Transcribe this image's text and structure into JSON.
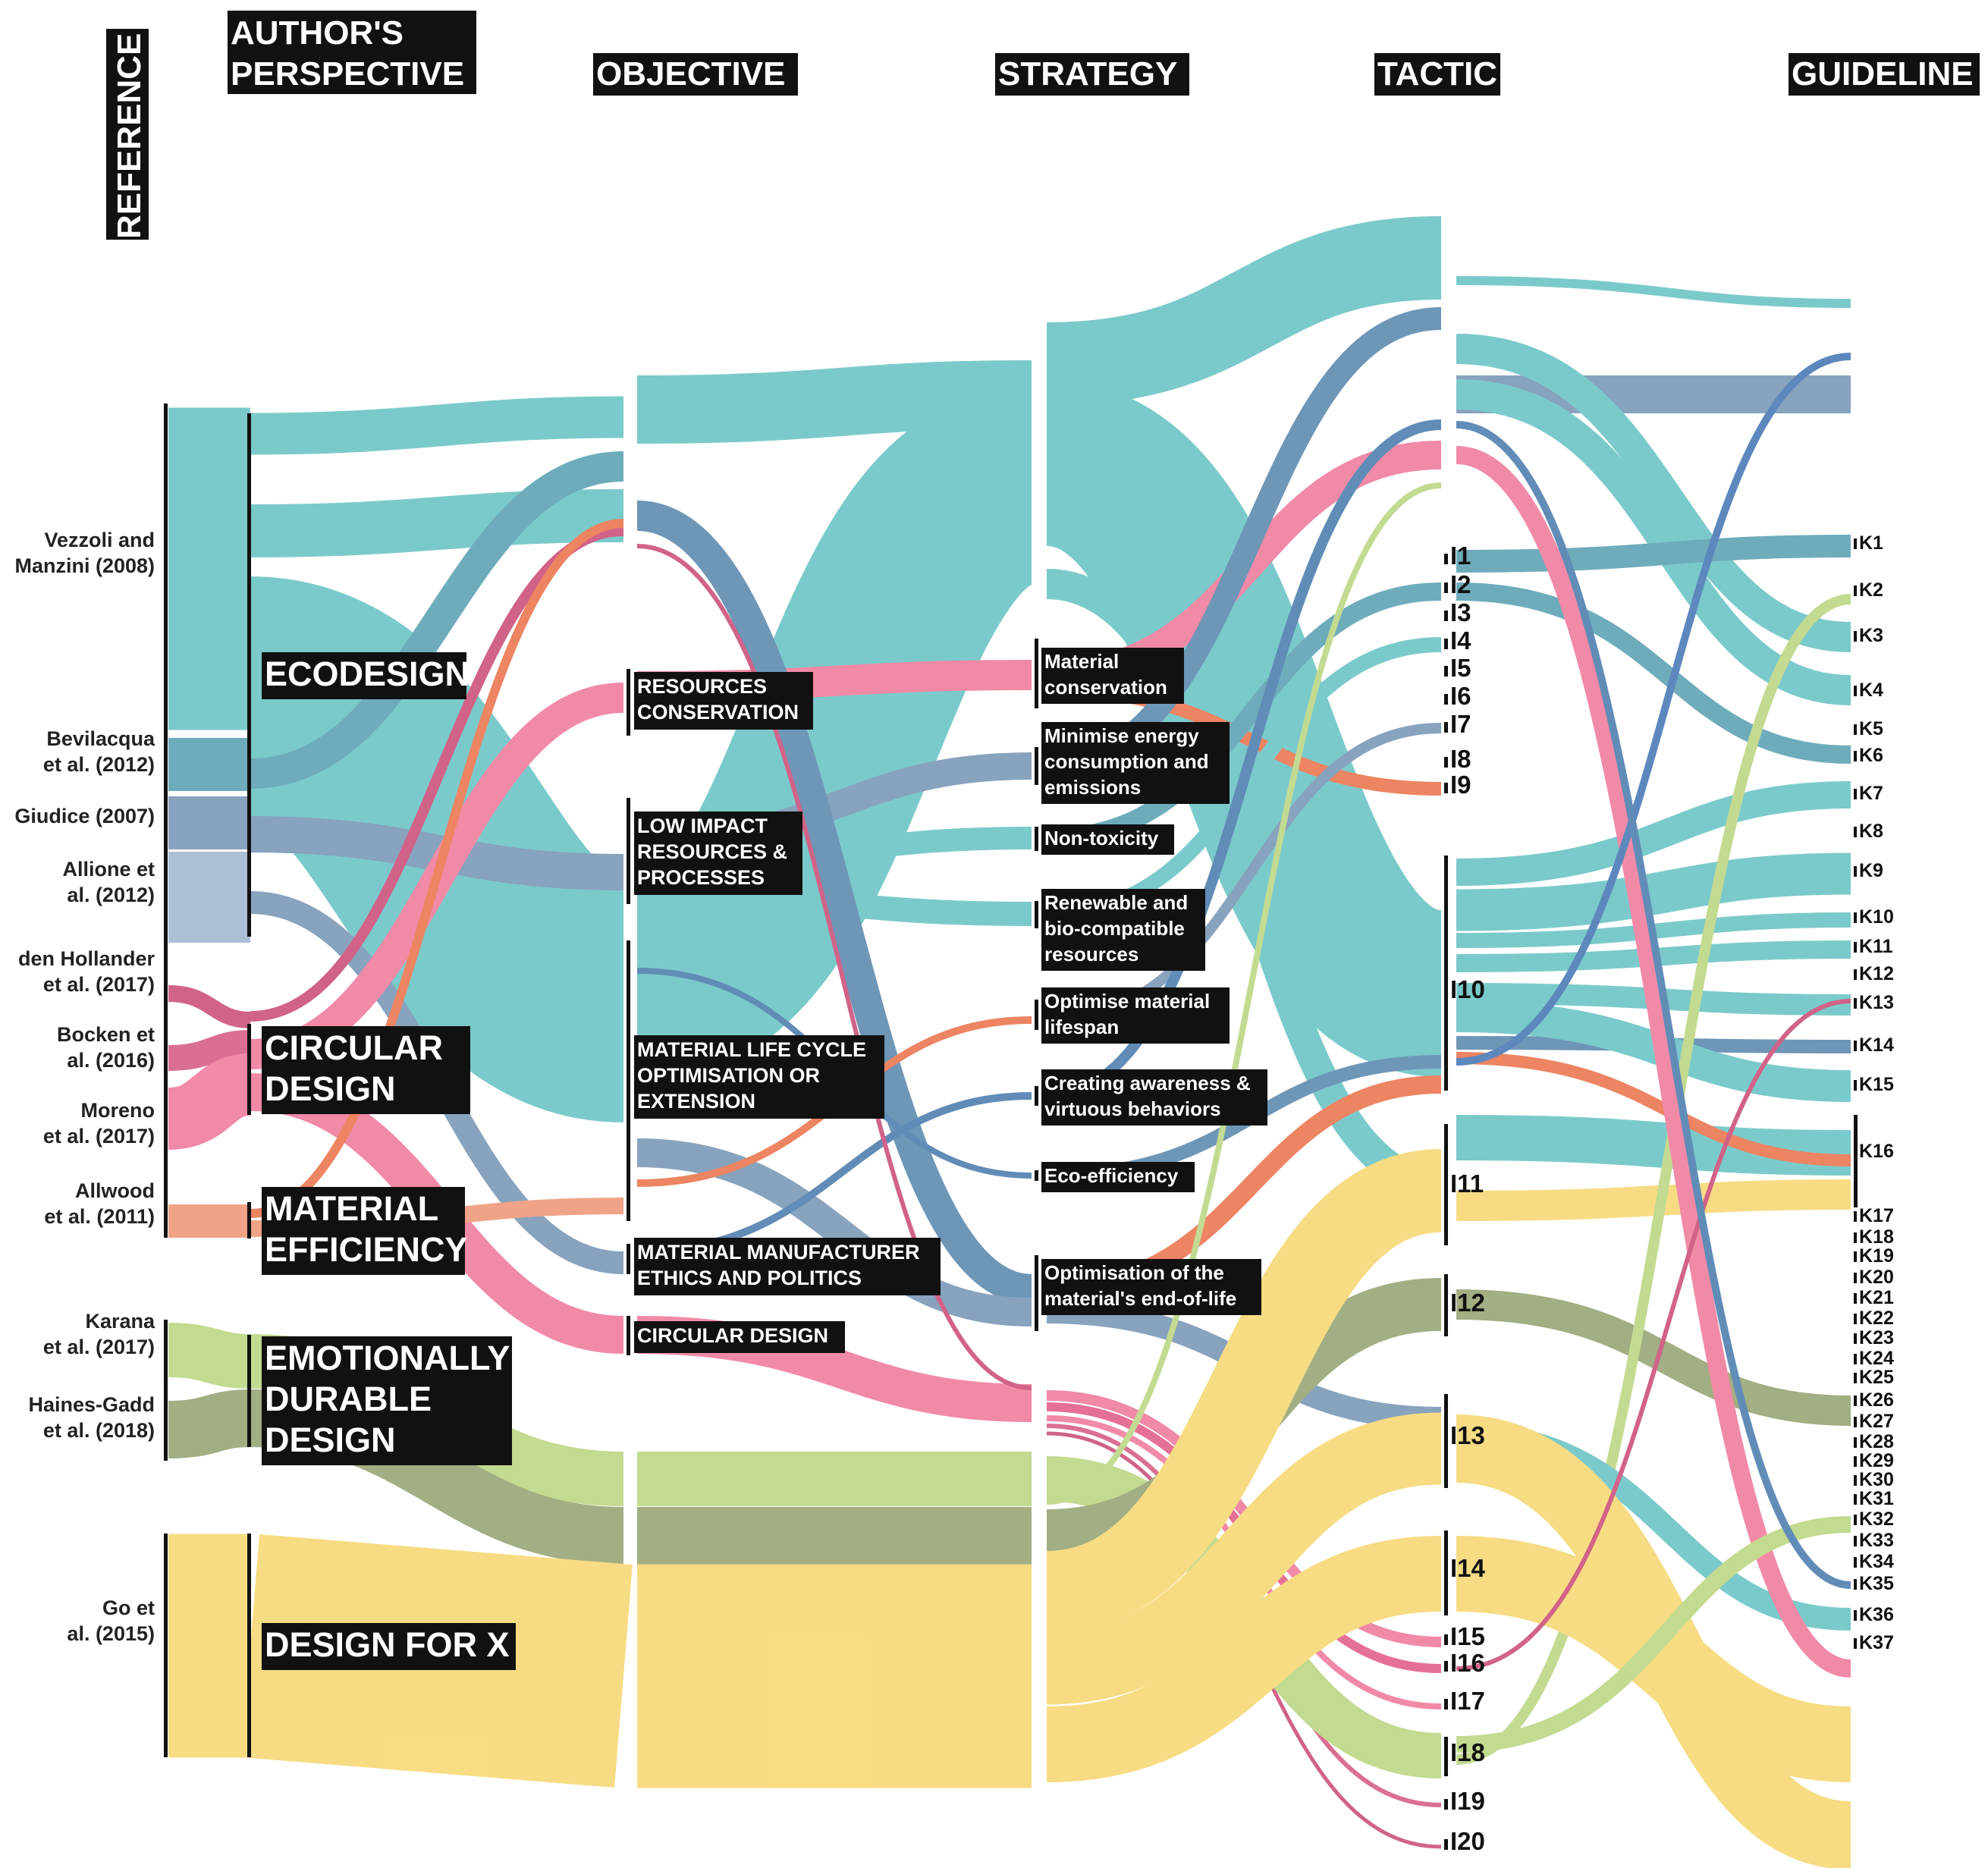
{
  "headers": {
    "reference": "REFERENCE",
    "perspective_line1": "AUTHOR'S",
    "perspective_line2": "PERSPECTIVE",
    "objective": "OBJECTIVE",
    "strategy": "STRATEGY",
    "tactic": "TACTIC",
    "guideline": "GUIDELINE"
  },
  "palette": {
    "teal": "#5fbfc0",
    "slate_teal": "#4f9aae",
    "slate": "#6f8fb0",
    "light_slate": "#9ab2cf",
    "steel_blue": "#3f74a8",
    "blue_link": "#3a6fb0",
    "magenta": "#c8416e",
    "pink": "#ee7194",
    "salmon": "#ef906e",
    "orange": "#ea6a40",
    "light_green": "#b7d37a",
    "olive": "#8e9d68",
    "yellow": "#f6d56a",
    "bright_yellow": "#f4c54c"
  },
  "references": [
    {
      "id": "vezzoli",
      "lines": [
        "Vezzoli and",
        "Manzini (2008)"
      ]
    },
    {
      "id": "bevilacqua",
      "lines": [
        "Bevilacqua",
        "et al. (2012)"
      ]
    },
    {
      "id": "giudice",
      "lines": [
        "Giudice (2007)"
      ]
    },
    {
      "id": "allione",
      "lines": [
        "Allione et",
        "al. (2012)"
      ]
    },
    {
      "id": "denhollander",
      "lines": [
        "den Hollander",
        "et al. (2017)"
      ]
    },
    {
      "id": "bocken",
      "lines": [
        "Bocken et",
        "al. (2016)"
      ]
    },
    {
      "id": "moreno",
      "lines": [
        "Moreno",
        "et al. (2017)"
      ]
    },
    {
      "id": "allwood",
      "lines": [
        "Allwood",
        "et al. (2011)"
      ]
    },
    {
      "id": "karana",
      "lines": [
        "Karana",
        "et al. (2017)"
      ]
    },
    {
      "id": "hainesgadd",
      "lines": [
        "Haines-Gadd",
        "et al. (2018)"
      ]
    },
    {
      "id": "go",
      "lines": [
        "Go et",
        "al. (2015)"
      ]
    }
  ],
  "perspectives": [
    {
      "id": "ecodesign",
      "lines": [
        "ECODESIGN"
      ]
    },
    {
      "id": "circular",
      "lines": [
        "CIRCULAR",
        "DESIGN"
      ]
    },
    {
      "id": "material_eff",
      "lines": [
        "MATERIAL",
        "EFFICIENCY"
      ]
    },
    {
      "id": "emotional",
      "lines": [
        "EMOTIONALLY",
        "DURABLE",
        "DESIGN"
      ]
    },
    {
      "id": "dfx",
      "lines": [
        "DESIGN FOR X"
      ]
    }
  ],
  "objectives": [
    {
      "id": "resources",
      "lines": [
        "RESOURCES",
        "CONSERVATION"
      ]
    },
    {
      "id": "low_impact",
      "lines": [
        "LOW IMPACT",
        "RESOURCES &",
        "PROCESSES"
      ]
    },
    {
      "id": "lifecycle",
      "lines": [
        "MATERIAL LIFE CYCLE",
        "OPTIMISATION OR",
        "EXTENSION"
      ]
    },
    {
      "id": "ethics",
      "lines": [
        "MATERIAL MANUFACTURER",
        "ETHICS AND POLITICS"
      ]
    },
    {
      "id": "circular_obj",
      "lines": [
        "CIRCULAR DESIGN"
      ]
    }
  ],
  "strategies": [
    {
      "id": "mat_cons",
      "lines": [
        "Material",
        "conservation"
      ]
    },
    {
      "id": "energy",
      "lines": [
        "Minimise energy",
        "consumption and",
        "emissions"
      ]
    },
    {
      "id": "nontox",
      "lines": [
        "Non-toxicity"
      ]
    },
    {
      "id": "renewable",
      "lines": [
        "Renewable and",
        "bio-compatible",
        "resources"
      ]
    },
    {
      "id": "lifespan",
      "lines": [
        "Optimise material",
        "lifespan"
      ]
    },
    {
      "id": "awareness",
      "lines": [
        "Creating awareness &",
        "virtuous behaviors"
      ]
    },
    {
      "id": "ecoeff",
      "lines": [
        "Eco-efficiency"
      ]
    },
    {
      "id": "eol",
      "lines": [
        "Optimisation of the",
        "material's end-of-life"
      ]
    }
  ],
  "tactics": [
    "I1",
    "I2",
    "I3",
    "I4",
    "I5",
    "I6",
    "I7",
    "I8",
    "I9",
    "I10",
    "I11",
    "I12",
    "I13",
    "I14",
    "I15",
    "I16",
    "I17",
    "I18",
    "I19",
    "I20"
  ],
  "guidelines": [
    "K1",
    "K2",
    "K3",
    "K4",
    "K5",
    "K6",
    "K7",
    "K8",
    "K9",
    "K10",
    "K11",
    "K12",
    "K13",
    "K14",
    "K15",
    "K16",
    "K17",
    "K18",
    "K19",
    "K20",
    "K21",
    "K22",
    "K23",
    "K24",
    "K25",
    "K26",
    "K27",
    "K28",
    "K29",
    "K30",
    "K31",
    "K32",
    "K33",
    "K34",
    "K35",
    "K36",
    "K37"
  ]
}
